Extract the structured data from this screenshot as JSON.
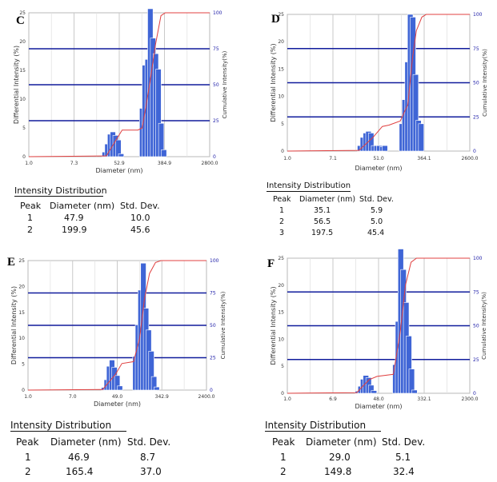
{
  "chart_data": [
    {
      "type": "bar",
      "panel_label": "C",
      "xlabel": "Diameter (nm)",
      "ylabel": "Differential Intensity (%)",
      "y2label": "Cumulative Intensity(%)",
      "x_tick_labels": [
        "1.0",
        "7.3",
        "52.9",
        "384.9",
        "2800.0"
      ],
      "xlim": [
        1.0,
        2800.0
      ],
      "xscale": "log",
      "ylim": [
        0,
        25
      ],
      "y_ticks": [
        0,
        5,
        10,
        15,
        20,
        25
      ],
      "y2lim": [
        0,
        100
      ],
      "y2_ticks": [
        0,
        25,
        50,
        75,
        100
      ],
      "grid": true,
      "series": [
        {
          "x": [
            28.0,
            31.5,
            35.5,
            40.0,
            45.0,
            51.0,
            57.5,
            145.0,
            163.0,
            184.0,
            207.0,
            233.0,
            263.0,
            296.0,
            334.0,
            376.0
          ],
          "values": [
            0.8,
            2.2,
            3.9,
            4.3,
            3.7,
            2.9,
            0.5,
            8.4,
            15.9,
            16.9,
            25.7,
            20.6,
            17.9,
            15.2,
            5.8,
            1.2
          ]
        },
        {
          "x": [
            1.0,
            30.0,
            60.0,
            120.0,
            145.0,
            200.0,
            260.0,
            330.0,
            400.0,
            2800.0
          ],
          "values": [
            0,
            0.5,
            18.5,
            18.5,
            20.0,
            50.0,
            78.0,
            98.0,
            100.0,
            100.0
          ]
        }
      ],
      "table": {
        "title": "Intensity Distribution",
        "headers": [
          "Peak",
          "Diameter (nm)",
          "Std. Dev."
        ],
        "rows": [
          [
            "1",
            "47.9",
            "10.0"
          ],
          [
            "2",
            "199.9",
            "45.6"
          ]
        ]
      }
    },
    {
      "type": "bar",
      "panel_label": "D",
      "xlabel": "Diameter (nm)",
      "ylabel": "Differential Intensity (%)",
      "y2label": "Cumulative Intensity(%)",
      "x_tick_labels": [
        "1.0",
        "7.1",
        "51.0",
        "364.1",
        "2600.0"
      ],
      "xlim": [
        1.0,
        2600.0
      ],
      "xscale": "log",
      "ylim": [
        0,
        25
      ],
      "y_ticks": [
        0,
        5,
        10,
        15,
        20,
        25
      ],
      "y2lim": [
        0,
        100
      ],
      "y2_ticks": [
        0,
        25,
        50,
        75,
        100
      ],
      "grid": true,
      "series": [
        {
          "x": [
            23.0,
            26.0,
            29.5,
            33.0,
            37.0,
            42.0,
            47.0,
            53.0,
            60.0,
            67.0,
            140.0,
            158.0,
            178.0,
            200.0,
            225.0,
            253.0,
            285.0,
            320.0
          ],
          "values": [
            1.0,
            2.5,
            3.3,
            3.6,
            3.3,
            1.0,
            1.0,
            1.0,
            0.8,
            1.0,
            5.0,
            9.4,
            16.3,
            25.0,
            24.5,
            14.0,
            5.6,
            5.0
          ]
        },
        {
          "x": [
            1.0,
            22.0,
            40.0,
            60.0,
            80.0,
            130.0,
            180.0,
            220.0,
            260.0,
            330.0,
            400.0,
            2600.0
          ],
          "values": [
            0,
            0.5,
            10.0,
            18.0,
            19.0,
            22.0,
            34.0,
            68.0,
            88.0,
            98.0,
            100.0,
            100.0
          ]
        }
      ],
      "table": {
        "title": "Intensity Distribution",
        "headers": [
          "Peak",
          "Diameter (nm)",
          "Std. Dev."
        ],
        "rows": [
          [
            "1",
            "35.1",
            "5.9"
          ],
          [
            "2",
            "56.5",
            "5.0"
          ],
          [
            "3",
            "197.5",
            "45.4"
          ]
        ]
      }
    },
    {
      "type": "bar",
      "panel_label": "E",
      "xlabel": "Diameter (nm)",
      "ylabel": "Differential Intensity (%)",
      "y2label": "Cumulative Intensity(%)",
      "x_tick_labels": [
        "1.0",
        "7.0",
        "49.0",
        "342.9",
        "2400.0"
      ],
      "xlim": [
        1.0,
        2400.0
      ],
      "xscale": "log",
      "ylim": [
        0,
        25
      ],
      "y_ticks": [
        0,
        5,
        10,
        15,
        20,
        25
      ],
      "y2lim": [
        0,
        100
      ],
      "y2_ticks": [
        0,
        25,
        50,
        75,
        100
      ],
      "grid": true,
      "series": [
        {
          "x": [
            27.5,
            31.0,
            34.5,
            39.0,
            43.5,
            49.0,
            55.0,
            108.0,
            121.0,
            136.0,
            153.0,
            172.0,
            193.0,
            217.0,
            244.0,
            274.0
          ],
          "values": [
            0.5,
            2.0,
            4.6,
            5.8,
            4.4,
            2.8,
            0.8,
            6.5,
            12.6,
            19.3,
            24.5,
            15.8,
            11.6,
            7.5,
            2.6,
            0.6
          ]
        },
        {
          "x": [
            1.0,
            26.0,
            45.0,
            60.0,
            100.0,
            130.0,
            160.0,
            200.0,
            260.0,
            330.0,
            2400.0
          ],
          "values": [
            0,
            0.5,
            12.0,
            20.5,
            22.0,
            40.0,
            70.0,
            90.0,
            98.5,
            100.0,
            100.0
          ]
        }
      ],
      "table": {
        "title": "Intensity Distribution",
        "headers": [
          "Peak",
          "Diameter (nm)",
          "Std. Dev."
        ],
        "rows": [
          [
            "1",
            "46.9",
            "8.7"
          ],
          [
            "2",
            "165.4",
            "37.0"
          ]
        ]
      }
    },
    {
      "type": "bar",
      "panel_label": "F",
      "xlabel": "Diameter (nm)",
      "ylabel": "Differential Intensity (%)",
      "y2label": "Cumulative Intensity(%)",
      "x_tick_labels": [
        "1.0",
        "6.9",
        "48.0",
        "332.1",
        "2300.0"
      ],
      "xlim": [
        1.0,
        2300.0
      ],
      "xscale": "log",
      "ylim": [
        0,
        25
      ],
      "y_ticks": [
        0,
        5,
        10,
        15,
        20,
        25
      ],
      "y2lim": [
        0,
        100
      ],
      "y2_ticks": [
        0,
        25,
        50,
        75,
        100
      ],
      "grid": true,
      "series": [
        {
          "x": [
            20.0,
            22.5,
            25.0,
            28.0,
            31.5,
            35.0,
            39.5,
            98.0,
            110.0,
            123.0,
            138.0,
            155.0,
            174.0,
            196.0,
            220.0
          ],
          "values": [
            0.4,
            1.3,
            2.6,
            3.3,
            2.9,
            1.5,
            0.5,
            5.3,
            13.3,
            26.7,
            22.9,
            16.8,
            10.6,
            4.5,
            0.6
          ]
        },
        {
          "x": [
            1.0,
            19.0,
            32.0,
            45.0,
            90.0,
            120.0,
            150.0,
            190.0,
            240.0,
            2300.0
          ],
          "values": [
            0,
            0.5,
            10.0,
            12.5,
            14.0,
            45.0,
            80.0,
            97.0,
            100.0,
            100.0
          ]
        }
      ],
      "table": {
        "title": "Intensity Distribution",
        "headers": [
          "Peak",
          "Diameter (nm)",
          "Std. Dev."
        ],
        "rows": [
          [
            "1",
            "29.0",
            "5.1"
          ],
          [
            "2",
            "149.8",
            "32.4"
          ]
        ]
      }
    }
  ],
  "colors": {
    "bar": "#3f65d6",
    "bar_edge": "#ffffff",
    "cumulative_line": "#e04040",
    "h_gridline": "#101c9c",
    "v_gridline": "#c9c9c9",
    "plot_bg": "#ffffff",
    "frame": "#b8b8b8"
  }
}
